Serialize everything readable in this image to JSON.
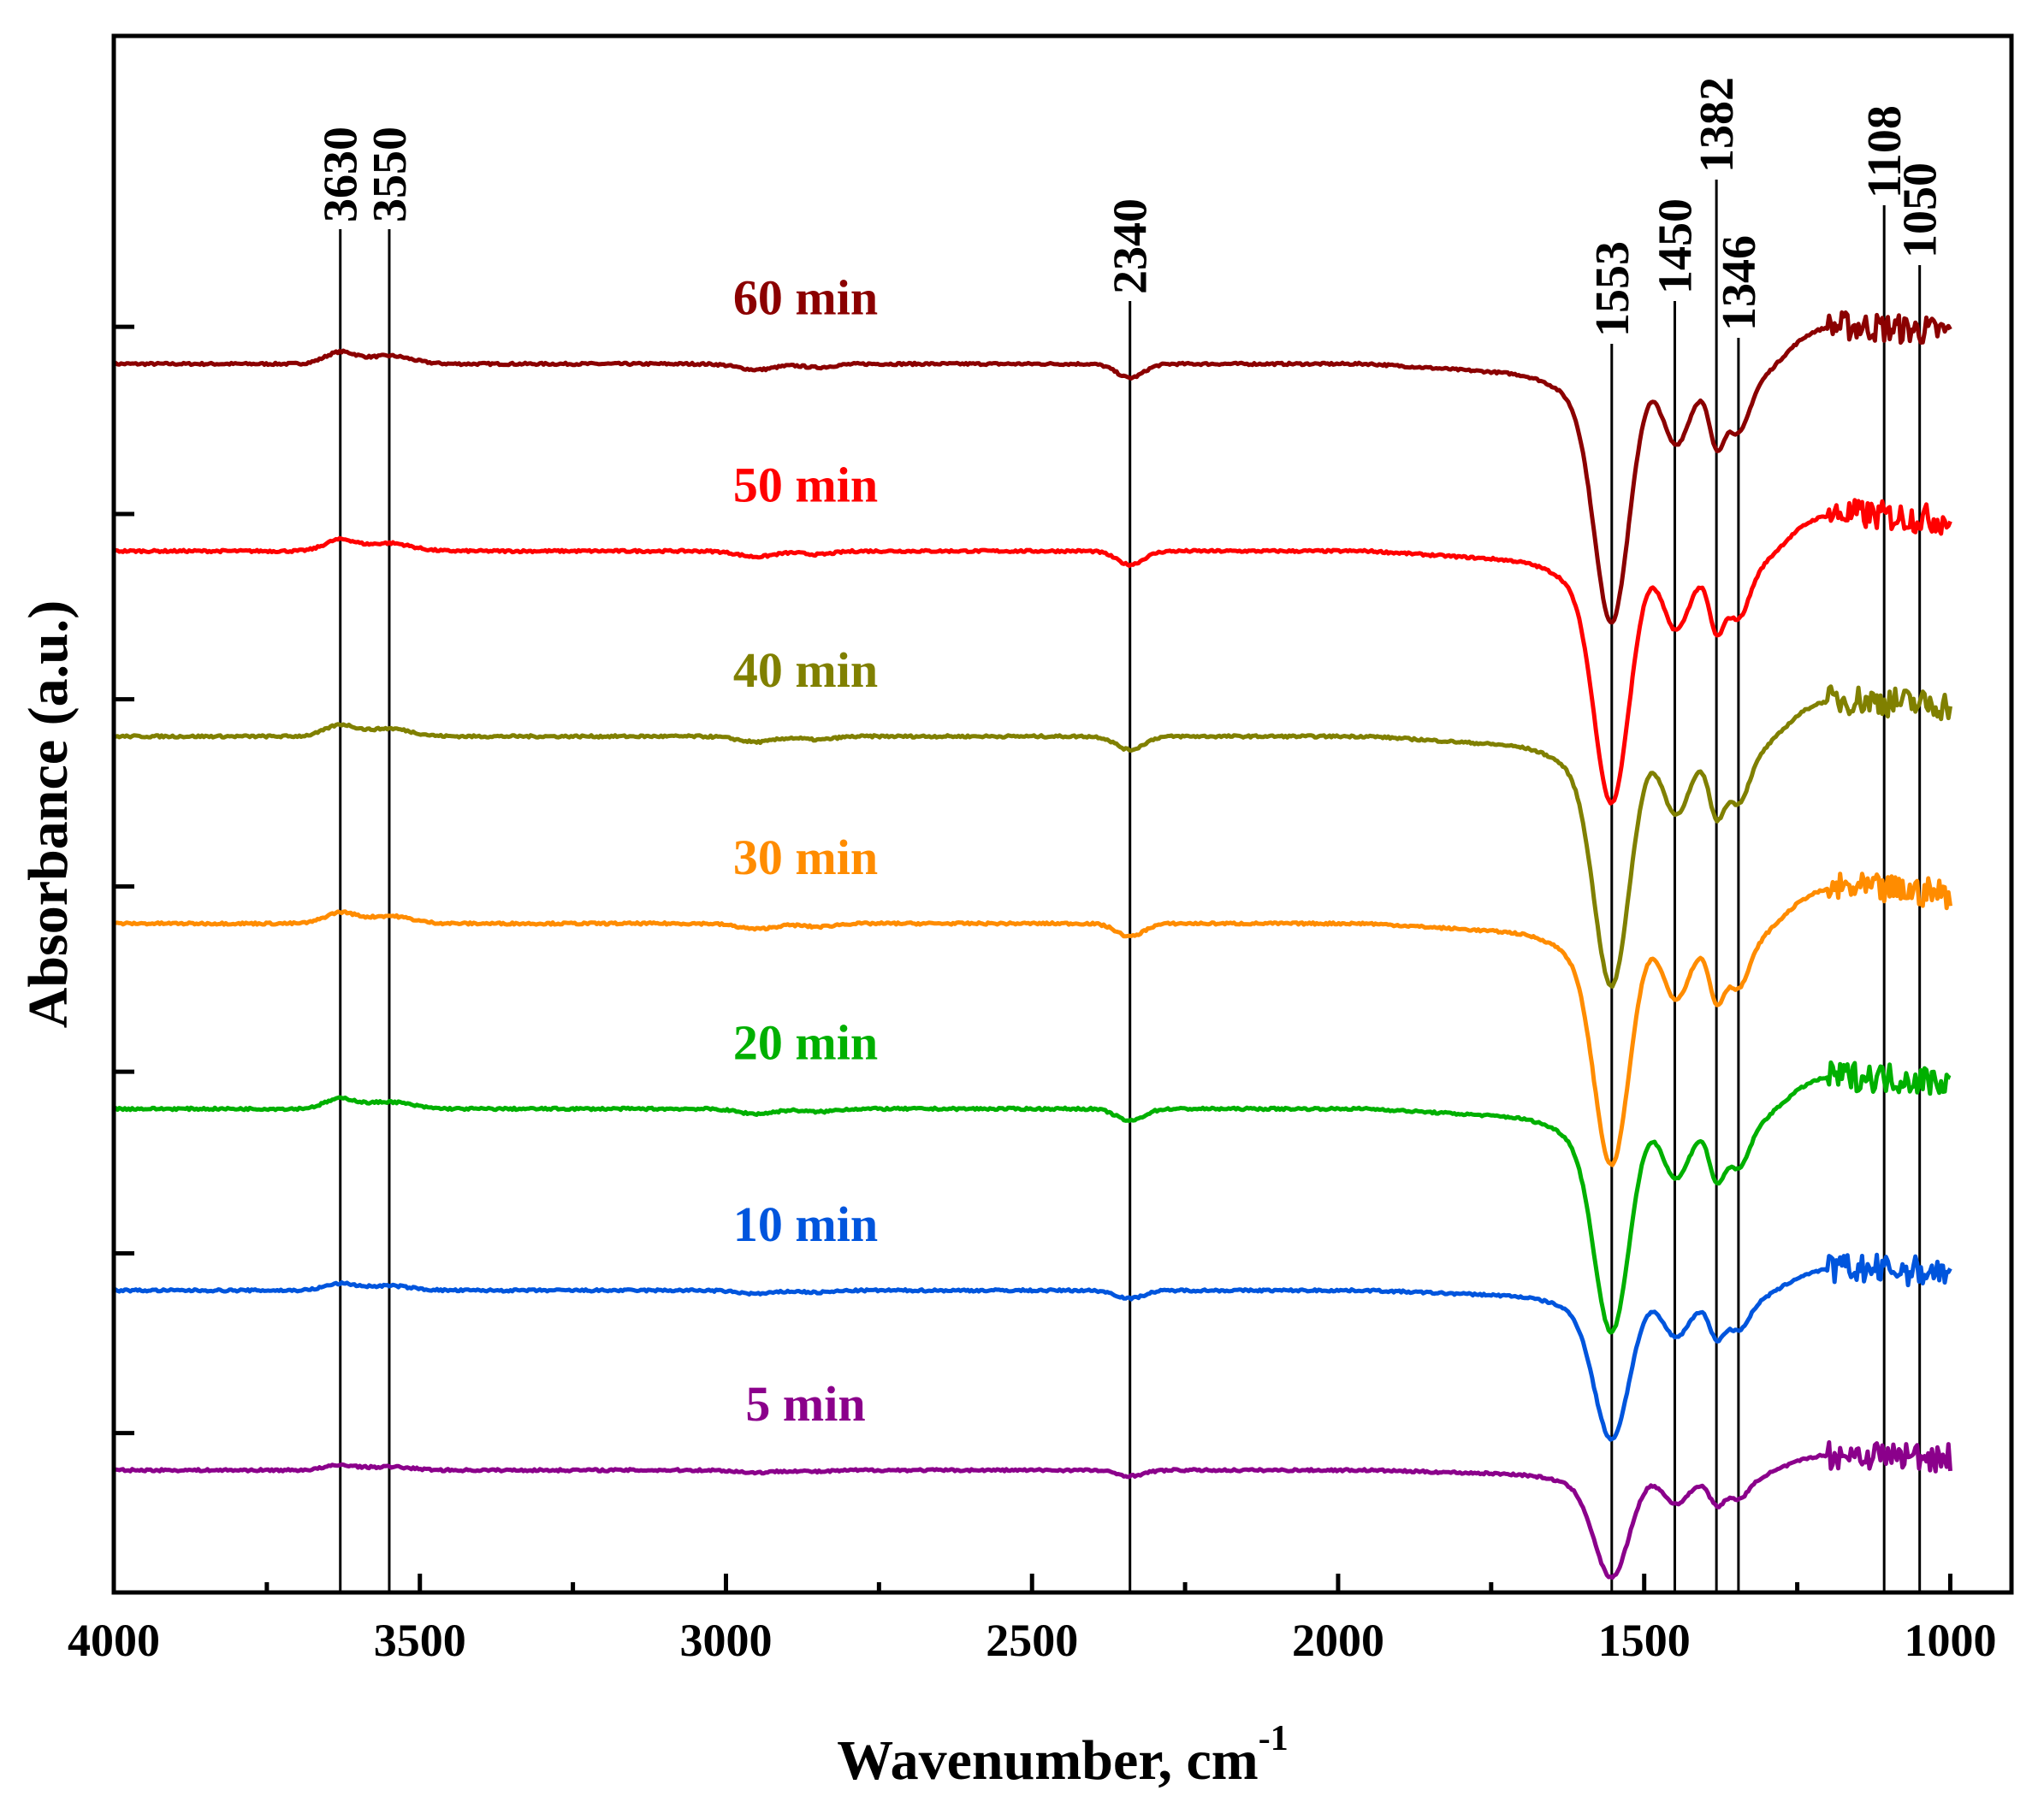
{
  "chart_data": {
    "type": "line",
    "title": "",
    "xlabel": "Wavenumber, cm",
    "xlabel_superscript": "-1",
    "ylabel": "Absorbance (a.u.)",
    "xlim": [
      4000,
      900
    ],
    "x_reversed": true,
    "x_ticks": [
      4000,
      3500,
      3000,
      2500,
      2000,
      1500,
      1000
    ],
    "x_tick_labels": [
      "4000",
      "3500",
      "3000",
      "2500",
      "2000",
      "1500",
      "1000"
    ],
    "y_ticks_labeled": false,
    "ylim": [
      0,
      8.4
    ],
    "peak_markers": [
      {
        "label": "3630",
        "x": 3630
      },
      {
        "label": "3550",
        "x": 3550
      },
      {
        "label": "2340",
        "x": 2340
      },
      {
        "label": "1553",
        "x": 1553
      },
      {
        "label": "1450",
        "x": 1450
      },
      {
        "label": "1382",
        "x": 1382
      },
      {
        "label": "1346",
        "x": 1346
      },
      {
        "label": "1108",
        "x": 1108
      },
      {
        "label": "1050",
        "x": 1050
      }
    ],
    "series": [
      {
        "name": "60 min",
        "color": "#8B0000",
        "baseline": 6.63,
        "dip_depth": 1.25
      },
      {
        "name": "50 min",
        "color": "#FF0000",
        "baseline": 5.62,
        "dip_depth": 1.22
      },
      {
        "name": "40 min",
        "color": "#808000",
        "baseline": 4.62,
        "dip_depth": 1.21
      },
      {
        "name": "30 min",
        "color": "#FF8C00",
        "baseline": 3.61,
        "dip_depth": 1.17
      },
      {
        "name": "20 min",
        "color": "#00B000",
        "baseline": 2.61,
        "dip_depth": 1.08
      },
      {
        "name": "10 min",
        "color": "#0055DD",
        "baseline": 1.63,
        "dip_depth": 0.72
      },
      {
        "name": "5 min",
        "color": "#8B008B",
        "baseline": 0.66,
        "dip_depth": 0.52
      }
    ]
  }
}
